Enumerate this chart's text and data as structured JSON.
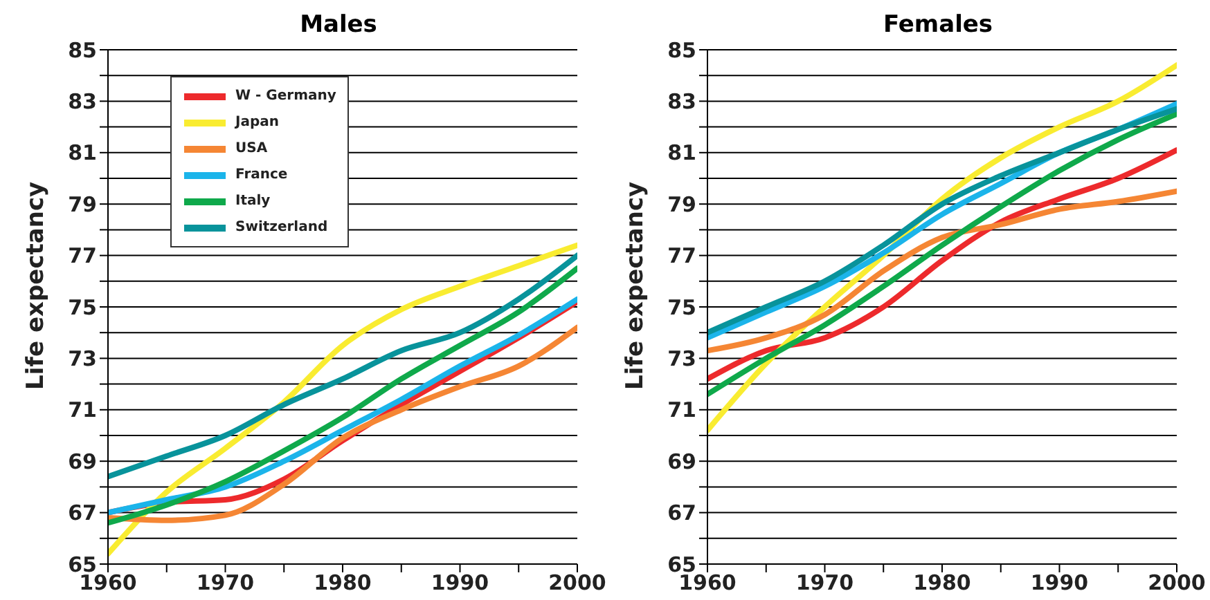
{
  "chart_data": [
    {
      "type": "line",
      "title": "Males",
      "ylabel": "Life expectancy",
      "x": [
        1960,
        1965,
        1970,
        1975,
        1980,
        1985,
        1990,
        1995,
        2000
      ],
      "xlim": [
        1960,
        2000
      ],
      "xticks": [
        1960,
        {
          "value": 1965,
          "label": null
        },
        1970,
        {
          "value": 1975,
          "label": null
        },
        1980,
        {
          "value": 1985,
          "label": null
        },
        1990,
        {
          "value": 1995,
          "label": null
        },
        2000
      ],
      "ylim": [
        65,
        85
      ],
      "yticks": [
        65,
        {
          "value": 66,
          "label": null
        },
        67,
        {
          "value": 68,
          "label": null
        },
        69,
        {
          "value": 70,
          "label": null
        },
        71,
        {
          "value": 72,
          "label": null
        },
        73,
        {
          "value": 74,
          "label": null
        },
        75,
        {
          "value": 76,
          "label": null
        },
        77,
        {
          "value": 78,
          "label": null
        },
        79,
        {
          "value": 80,
          "label": null
        },
        81,
        {
          "value": 82,
          "label": null
        },
        83,
        {
          "value": 84,
          "label": null
        },
        85
      ],
      "grid": "y",
      "legend": "top left",
      "marker": "none",
      "series": [
        {
          "name": "W - Germany",
          "color": "#ed2a2c",
          "values": [
            67.0,
            67.4,
            67.5,
            68.3,
            69.8,
            71.2,
            72.5,
            73.8,
            75.2
          ]
        },
        {
          "name": "Japan",
          "color": "#f9ec31",
          "values": [
            65.4,
            67.8,
            69.5,
            71.3,
            73.5,
            74.9,
            75.8,
            76.6,
            77.4
          ]
        },
        {
          "name": "USA",
          "color": "#f58634",
          "values": [
            66.8,
            66.7,
            66.9,
            68.1,
            69.9,
            71.0,
            71.9,
            72.7,
            74.2
          ]
        },
        {
          "name": "France",
          "color": "#1bb4ea",
          "values": [
            67.0,
            67.5,
            68.0,
            69.0,
            70.2,
            71.4,
            72.7,
            73.9,
            75.3
          ]
        },
        {
          "name": "Italy",
          "color": "#0fa94b",
          "values": [
            66.6,
            67.3,
            68.2,
            69.4,
            70.7,
            72.2,
            73.5,
            74.8,
            76.5
          ]
        },
        {
          "name": "Switzerland",
          "color": "#08939b",
          "values": [
            68.4,
            69.2,
            70.0,
            71.2,
            72.2,
            73.3,
            74.0,
            75.3,
            77.0
          ]
        }
      ]
    },
    {
      "type": "line",
      "title": "Females",
      "ylabel": "Life expectancy",
      "x": [
        1960,
        1965,
        1970,
        1975,
        1980,
        1985,
        1990,
        1995,
        2000
      ],
      "xlim": [
        1960,
        2000
      ],
      "xticks": [
        1960,
        {
          "value": 1965,
          "label": null
        },
        1970,
        {
          "value": 1975,
          "label": null
        },
        1980,
        {
          "value": 1985,
          "label": null
        },
        1990,
        {
          "value": 1995,
          "label": null
        },
        2000
      ],
      "ylim": [
        65,
        85
      ],
      "yticks": [
        65,
        {
          "value": 66,
          "label": null
        },
        67,
        {
          "value": 68,
          "label": null
        },
        69,
        {
          "value": 70,
          "label": null
        },
        71,
        {
          "value": 72,
          "label": null
        },
        73,
        {
          "value": 74,
          "label": null
        },
        75,
        {
          "value": 76,
          "label": null
        },
        77,
        {
          "value": 78,
          "label": null
        },
        79,
        {
          "value": 80,
          "label": null
        },
        81,
        {
          "value": 82,
          "label": null
        },
        83,
        {
          "value": 84,
          "label": null
        },
        85
      ],
      "grid": "y",
      "marker": "none",
      "series": [
        {
          "color": "#ed2a2c",
          "values": [
            72.2,
            73.3,
            73.8,
            75.0,
            76.8,
            78.3,
            79.2,
            80.0,
            81.1
          ]
        },
        {
          "color": "#f9ec31",
          "values": [
            70.2,
            72.8,
            75.0,
            77.0,
            79.2,
            80.8,
            82.0,
            83.0,
            84.4
          ]
        },
        {
          "color": "#f58634",
          "values": [
            73.3,
            73.8,
            74.7,
            76.4,
            77.7,
            78.2,
            78.8,
            79.1,
            79.5
          ]
        },
        {
          "color": "#1bb4ea",
          "values": [
            73.8,
            74.8,
            75.8,
            77.1,
            78.6,
            79.8,
            81.0,
            81.9,
            82.9
          ]
        },
        {
          "color": "#0fa94b",
          "values": [
            71.6,
            73.0,
            74.3,
            75.8,
            77.4,
            78.9,
            80.3,
            81.5,
            82.5
          ]
        },
        {
          "color": "#08939b",
          "values": [
            74.0,
            75.0,
            76.0,
            77.4,
            79.0,
            80.1,
            81.0,
            81.9,
            82.7
          ]
        }
      ]
    }
  ]
}
